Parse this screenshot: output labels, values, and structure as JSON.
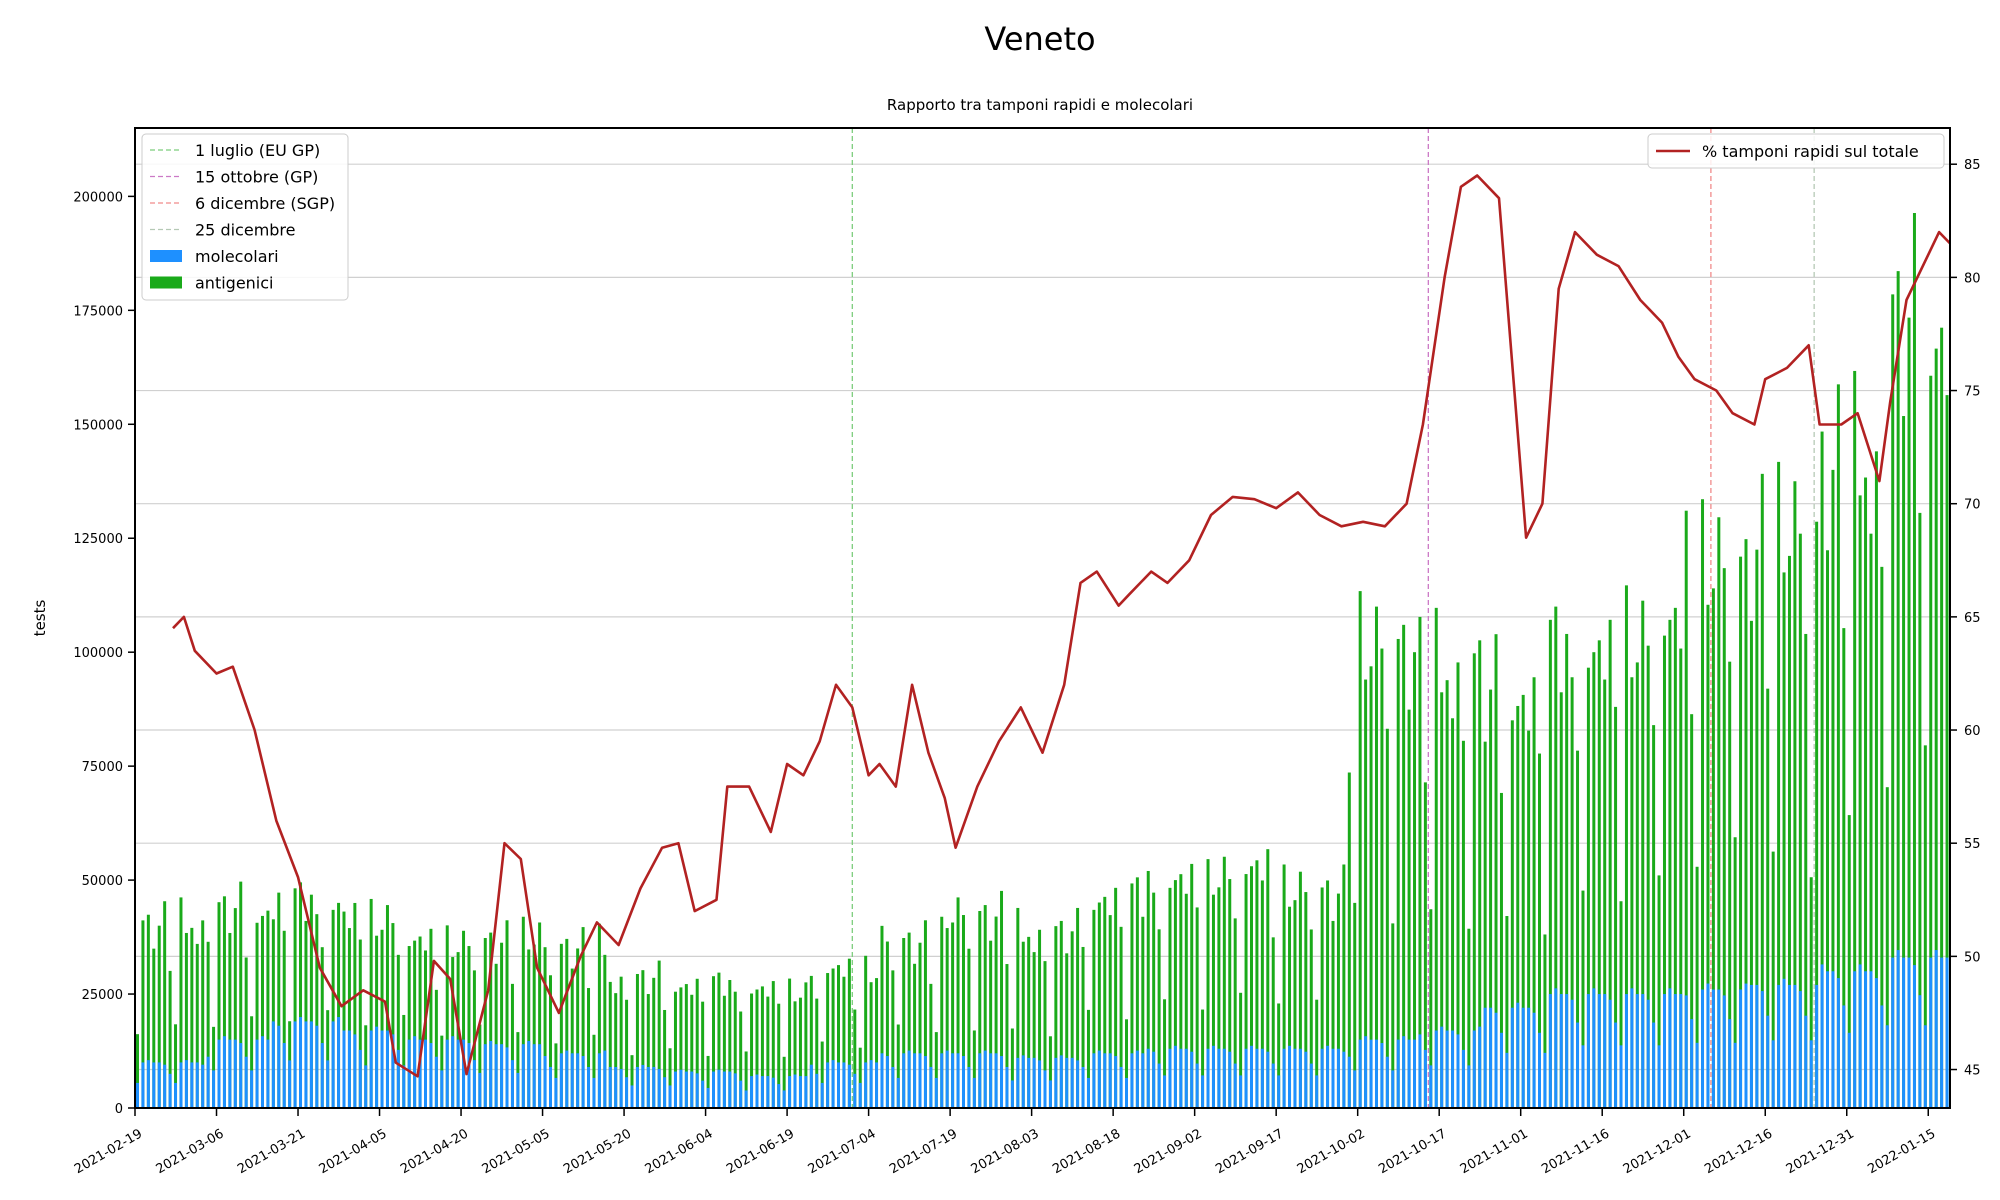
{
  "chart_data": {
    "type": "bar",
    "title": "Veneto",
    "subtitle": "Rapporto tra tamponi rapidi e molecolari",
    "ylabel": "tests",
    "ylim": [
      0,
      215000
    ],
    "y2lim": [
      43.3,
      86.6
    ],
    "yticks": [
      0,
      25000,
      50000,
      75000,
      100000,
      125000,
      150000,
      175000,
      200000
    ],
    "y2ticks": [
      45,
      50,
      55,
      60,
      65,
      70,
      75,
      80,
      85
    ],
    "x_start": "2021-02-19",
    "x_end": "2022-01-19",
    "xtick_labels": [
      "2021-02-19",
      "2021-03-06",
      "2021-03-21",
      "2021-04-05",
      "2021-04-20",
      "2021-05-05",
      "2021-05-20",
      "2021-06-04",
      "2021-06-19",
      "2021-07-04",
      "2021-07-19",
      "2021-08-03",
      "2021-08-18",
      "2021-09-02",
      "2021-09-17",
      "2021-10-02",
      "2021-10-17",
      "2021-11-01",
      "2021-11-16",
      "2021-12-01",
      "2021-12-16",
      "2021-12-31",
      "2022-01-15"
    ],
    "grid": true,
    "legend_left_placement": "top-left",
    "legend_right_placement": "top-right",
    "vlines": [
      {
        "date": "2021-07-01",
        "label": "1 luglio (EU GP)",
        "color": "#7ccd7c"
      },
      {
        "date": "2021-10-15",
        "label": "15 ottobre (GP)",
        "color": "#cc79c6"
      },
      {
        "date": "2021-12-06",
        "label": "6 dicembre (SGP)",
        "color": "#f08a8a"
      },
      {
        "date": "2021-12-25",
        "label": "25 dicembre",
        "color": "#b5c9b5"
      }
    ],
    "series": [
      {
        "name": "molecolari",
        "kind": "bar",
        "color": "#1e90ff",
        "weekly_typical": [
          10000,
          15000,
          19000,
          17000,
          15000,
          14000,
          12000,
          9000,
          8000,
          7000,
          10000,
          12000,
          12000,
          11000,
          12000,
          13000,
          13000,
          13000,
          15000,
          17000,
          22000,
          25000,
          25000,
          26000,
          27000,
          30000,
          33000
        ]
      },
      {
        "name": "antigenici",
        "kind": "bar",
        "color": "#1aaa1a",
        "weekly_typical": [
          40000,
          43000,
          45000,
          42000,
          36000,
          37000,
          35000,
          28000,
          27000,
          26000,
          30000,
          37000,
          42000,
          38000,
          46000,
          50000,
          52000,
          48000,
          100000,
          95000,
          90000,
          100000,
          105000,
          120000,
          125000,
          140000,
          170000
        ]
      },
      {
        "name": "% tamponi rapidi sul totale",
        "kind": "line",
        "axis": "right",
        "color": "#b22222",
        "points": [
          [
            "2021-02-26",
            64.5
          ],
          [
            "2021-02-28",
            65.0
          ],
          [
            "2021-03-02",
            63.5
          ],
          [
            "2021-03-06",
            62.5
          ],
          [
            "2021-03-09",
            62.8
          ],
          [
            "2021-03-13",
            60.0
          ],
          [
            "2021-03-17",
            56.0
          ],
          [
            "2021-03-21",
            53.5
          ],
          [
            "2021-03-25",
            49.5
          ],
          [
            "2021-03-29",
            47.8
          ],
          [
            "2021-04-02",
            48.5
          ],
          [
            "2021-04-06",
            48.0
          ],
          [
            "2021-04-08",
            45.3
          ],
          [
            "2021-04-12",
            44.7
          ],
          [
            "2021-04-15",
            49.8
          ],
          [
            "2021-04-18",
            49.0
          ],
          [
            "2021-04-21",
            44.8
          ],
          [
            "2021-04-25",
            48.5
          ],
          [
            "2021-04-28",
            55.0
          ],
          [
            "2021-05-01",
            54.3
          ],
          [
            "2021-05-04",
            49.5
          ],
          [
            "2021-05-08",
            47.5
          ],
          [
            "2021-05-12",
            50.0
          ],
          [
            "2021-05-15",
            51.5
          ],
          [
            "2021-05-19",
            50.5
          ],
          [
            "2021-05-23",
            53.0
          ],
          [
            "2021-05-27",
            54.8
          ],
          [
            "2021-05-30",
            55.0
          ],
          [
            "2021-06-02",
            52.0
          ],
          [
            "2021-06-06",
            52.5
          ],
          [
            "2021-06-08",
            57.5
          ],
          [
            "2021-06-12",
            57.5
          ],
          [
            "2021-06-16",
            55.5
          ],
          [
            "2021-06-19",
            58.5
          ],
          [
            "2021-06-22",
            58.0
          ],
          [
            "2021-06-25",
            59.5
          ],
          [
            "2021-06-28",
            62.0
          ],
          [
            "2021-07-01",
            61.0
          ],
          [
            "2021-07-04",
            58.0
          ],
          [
            "2021-07-06",
            58.5
          ],
          [
            "2021-07-09",
            57.5
          ],
          [
            "2021-07-12",
            62.0
          ],
          [
            "2021-07-15",
            59.0
          ],
          [
            "2021-07-18",
            57.0
          ],
          [
            "2021-07-20",
            54.8
          ],
          [
            "2021-07-24",
            57.5
          ],
          [
            "2021-07-28",
            59.5
          ],
          [
            "2021-08-01",
            61.0
          ],
          [
            "2021-08-05",
            59.0
          ],
          [
            "2021-08-09",
            62.0
          ],
          [
            "2021-08-12",
            66.5
          ],
          [
            "2021-08-15",
            67.0
          ],
          [
            "2021-08-19",
            65.5
          ],
          [
            "2021-08-21",
            66.0
          ],
          [
            "2021-08-25",
            67.0
          ],
          [
            "2021-08-28",
            66.5
          ],
          [
            "2021-09-01",
            67.5
          ],
          [
            "2021-09-05",
            69.5
          ],
          [
            "2021-09-09",
            70.3
          ],
          [
            "2021-09-13",
            70.2
          ],
          [
            "2021-09-17",
            69.8
          ],
          [
            "2021-09-21",
            70.5
          ],
          [
            "2021-09-25",
            69.5
          ],
          [
            "2021-09-29",
            69.0
          ],
          [
            "2021-10-03",
            69.2
          ],
          [
            "2021-10-07",
            69.0
          ],
          [
            "2021-10-11",
            70.0
          ],
          [
            "2021-10-14",
            73.5
          ],
          [
            "2021-10-18",
            80.0
          ],
          [
            "2021-10-21",
            84.0
          ],
          [
            "2021-10-24",
            84.5
          ],
          [
            "2021-10-28",
            83.5
          ],
          [
            "2021-11-02",
            68.5
          ],
          [
            "2021-11-05",
            70.0
          ],
          [
            "2021-11-08",
            79.5
          ],
          [
            "2021-11-11",
            82.0
          ],
          [
            "2021-11-15",
            81.0
          ],
          [
            "2021-11-19",
            80.5
          ],
          [
            "2021-11-23",
            79.0
          ],
          [
            "2021-11-27",
            78.0
          ],
          [
            "2021-11-30",
            76.5
          ],
          [
            "2021-12-03",
            75.5
          ],
          [
            "2021-12-07",
            75.0
          ],
          [
            "2021-12-10",
            74.0
          ],
          [
            "2021-12-14",
            73.5
          ],
          [
            "2021-12-16",
            75.5
          ],
          [
            "2021-12-20",
            76.0
          ],
          [
            "2021-12-24",
            77.0
          ],
          [
            "2021-12-26",
            73.5
          ],
          [
            "2021-12-30",
            73.5
          ],
          [
            "2022-01-02",
            74.0
          ],
          [
            "2022-01-06",
            71.0
          ],
          [
            "2022-01-08",
            74.5
          ],
          [
            "2022-01-11",
            79.0
          ],
          [
            "2022-01-14",
            80.5
          ],
          [
            "2022-01-17",
            82.0
          ],
          [
            "2022-01-19",
            81.5
          ]
        ]
      }
    ]
  }
}
